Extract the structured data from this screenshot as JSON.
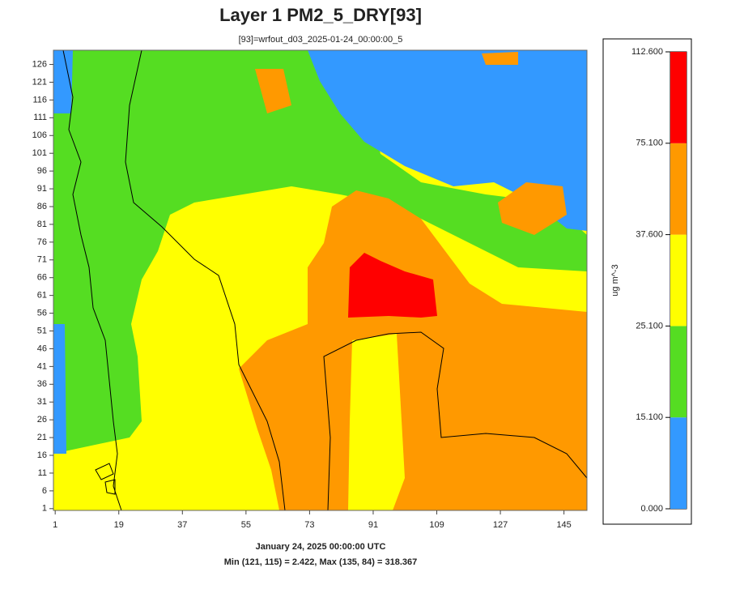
{
  "chart_data": {
    "type": "map",
    "title": "Layer 1 PM2_5_DRY[93]",
    "subtitle": "[93]=wrfout_d03_2025-01-24_00:00:00_5",
    "xlim": [
      0.5,
      151.5
    ],
    "ylim": [
      0.5,
      130
    ],
    "xticks": [
      1,
      19,
      37,
      55,
      73,
      91,
      109,
      127,
      145
    ],
    "yticks": [
      1,
      6,
      11,
      16,
      21,
      26,
      31,
      36,
      41,
      46,
      51,
      56,
      61,
      66,
      71,
      76,
      81,
      86,
      91,
      96,
      101,
      106,
      111,
      116,
      121,
      126
    ],
    "legend": {
      "unit": "ug m^-3",
      "breaks": [
        {
          "value": 0,
          "label": "0.000"
        },
        {
          "value": 15.1,
          "label": "15.100"
        },
        {
          "value": 25.1,
          "label": "25.100"
        },
        {
          "value": 37.6,
          "label": "37.600"
        },
        {
          "value": 75.1,
          "label": "75.100"
        },
        {
          "value": 112.6,
          "label": "112.600"
        }
      ],
      "colors": [
        "#3399ff",
        "#55dd22",
        "#ffff00",
        "#ff9900",
        "#ff0000"
      ]
    },
    "footer": [
      "January 24, 2025 00:00:00 UTC",
      "Min (121, 115) = 2.422, Max (135, 84) = 318.367"
    ]
  }
}
